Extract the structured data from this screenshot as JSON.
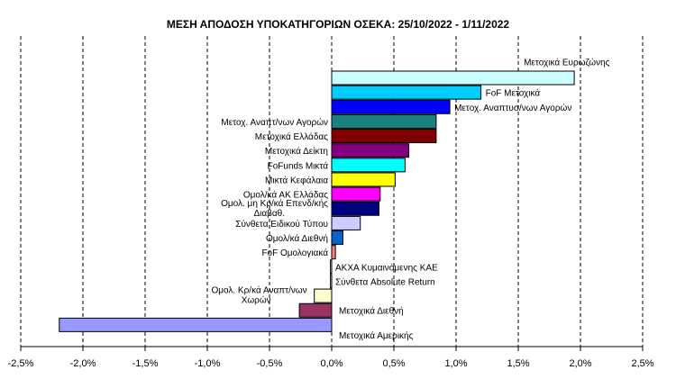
{
  "chart_data": {
    "type": "bar",
    "orientation": "horizontal",
    "title": "ΜΕΣΗ ΑΠΟΔΟΣΗ ΥΠΟΚΑΤΗΓΟΡΙΩΝ ΟΣΕΚΑ: 25/10/2022 - 1/11/2022",
    "xlabel": "",
    "ylabel": "",
    "xlim": [
      -2.5,
      2.5
    ],
    "x_ticks": [
      "-2,5%",
      "-2,0%",
      "-1,5%",
      "-1,0%",
      "-0,5%",
      "0,0%",
      "0,5%",
      "1,0%",
      "1,5%",
      "2,0%",
      "2,5%"
    ],
    "grid": "vertical dashed",
    "legend": "none",
    "categories": [
      "Μετοχικά Ευρωζώνης",
      "FoF Μετοχικά",
      "Μετοχ. Αναπτυσ/νων Αγορών",
      "Μετοχ. Αναπτ/νων Αγορών",
      "Μετοχικά Ελλάδας",
      "Μετοχικά Δείκτη",
      "FoFunds Μικτά",
      "Μικτά Κεφάλαια",
      "Ομολ/κά ΑΚ Ελλάδας",
      "Ομολ. μη Κρ/κά Επενδ/κής Διαβαθ.",
      "Σύνθετα Ειδικού Τύπου",
      "Ομολ/κά Διεθνή",
      "FoF Ομολογιακά",
      "ΑΚΧΑ Κυμαινόμενης ΚΑΕ",
      "Σύνθετα Absolute Return",
      "Ομολ. Κρ/κά Αναπτ/νων Χωρών",
      "Μετοχικά Διεθνή",
      "Μετοχικά Αμερικής"
    ],
    "values": [
      1.95,
      1.2,
      0.95,
      0.84,
      0.84,
      0.62,
      0.59,
      0.51,
      0.39,
      0.38,
      0.23,
      0.09,
      0.03,
      -0.01,
      -0.01,
      -0.14,
      -0.26,
      -2.19
    ],
    "colors": [
      "#ccffff",
      "#00ccff",
      "#0000ff",
      "#1a8080",
      "#800000",
      "#800080",
      "#00ffff",
      "#ffff00",
      "#ff00ff",
      "#000080",
      "#ccccff",
      "#0066cc",
      "#ff8080",
      "#ffffff",
      "#ffffff",
      "#ffffcc",
      "#993366",
      "#9999ff"
    ]
  }
}
